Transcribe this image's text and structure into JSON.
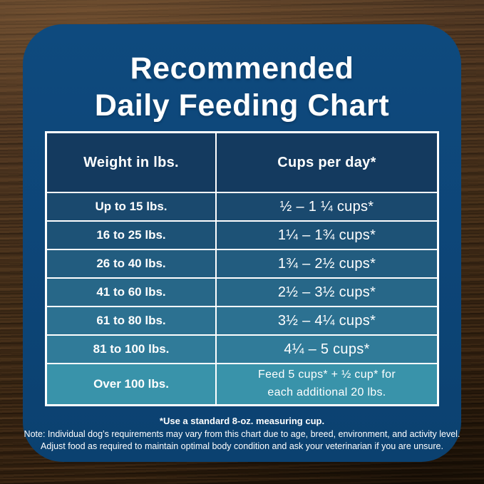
{
  "title": {
    "line1": "Recommended",
    "line2": "Daily Feeding Chart"
  },
  "table": {
    "headers": [
      "Weight in lbs.",
      "Cups per day*"
    ],
    "header_bg": "#143a5f",
    "rows": [
      {
        "weight": "Up to 15 lbs.",
        "cups": "½ – 1 ¼ cups*",
        "color": "#1a496e"
      },
      {
        "weight": "16 to 25 lbs.",
        "cups": "1¼ – 1¾ cups*",
        "color": "#1d5276"
      },
      {
        "weight": "26 to 40 lbs.",
        "cups": "1¾ – 2½ cups*",
        "color": "#225c7f"
      },
      {
        "weight": "41 to 60 lbs.",
        "cups": "2½ – 3½ cups*",
        "color": "#276788"
      },
      {
        "weight": "61 to 80 lbs.",
        "cups": "3½ – 4¼ cups*",
        "color": "#2c7191"
      },
      {
        "weight": "81 to 100 lbs.",
        "cups": "4¼ – 5 cups*",
        "color": "#307b99"
      },
      {
        "weight": "Over 100 lbs.",
        "cups": "Feed 5 cups* + ½ cup* for\neach additional 20 lbs.",
        "color": "#3993aa"
      }
    ]
  },
  "notes": {
    "line1": "*Use a standard 8-oz. measuring cup.",
    "line2": "Note: Individual dog’s requirements may vary from this chart due to age, breed, environment, and activity level.",
    "line3": "Adjust food as required to maintain optimal body condition and ask your veterinarian if you are unsure."
  },
  "colors": {
    "panel_blue": "#0d4577",
    "header_navy": "#143a5f",
    "divider_white": "#ffffff",
    "text_white": "#ffffff",
    "wood_brown": "#3e2a16"
  },
  "chart_data": {
    "type": "table",
    "title": "Recommended Daily Feeding Chart",
    "columns": [
      "Weight in lbs.",
      "Cups per day*"
    ],
    "rows": [
      [
        "Up to 15 lbs.",
        "½ – 1 ¼ cups*"
      ],
      [
        "16 to 25 lbs.",
        "1¼ – 1¾ cups*"
      ],
      [
        "26 to 40 lbs.",
        "1¾ – 2½ cups*"
      ],
      [
        "41 to 60 lbs.",
        "2½ – 3½ cups*"
      ],
      [
        "61 to 80 lbs.",
        "3½ – 4¼ cups*"
      ],
      [
        "81 to 100 lbs.",
        "4¼ – 5 cups*"
      ],
      [
        "Over 100 lbs.",
        "Feed 5 cups* + ½ cup* for each additional 20 lbs."
      ]
    ],
    "footnote": "*Use a standard 8-oz. measuring cup.",
    "layout": "two-column table, gradient row colors dark navy to teal, white gridlines"
  }
}
